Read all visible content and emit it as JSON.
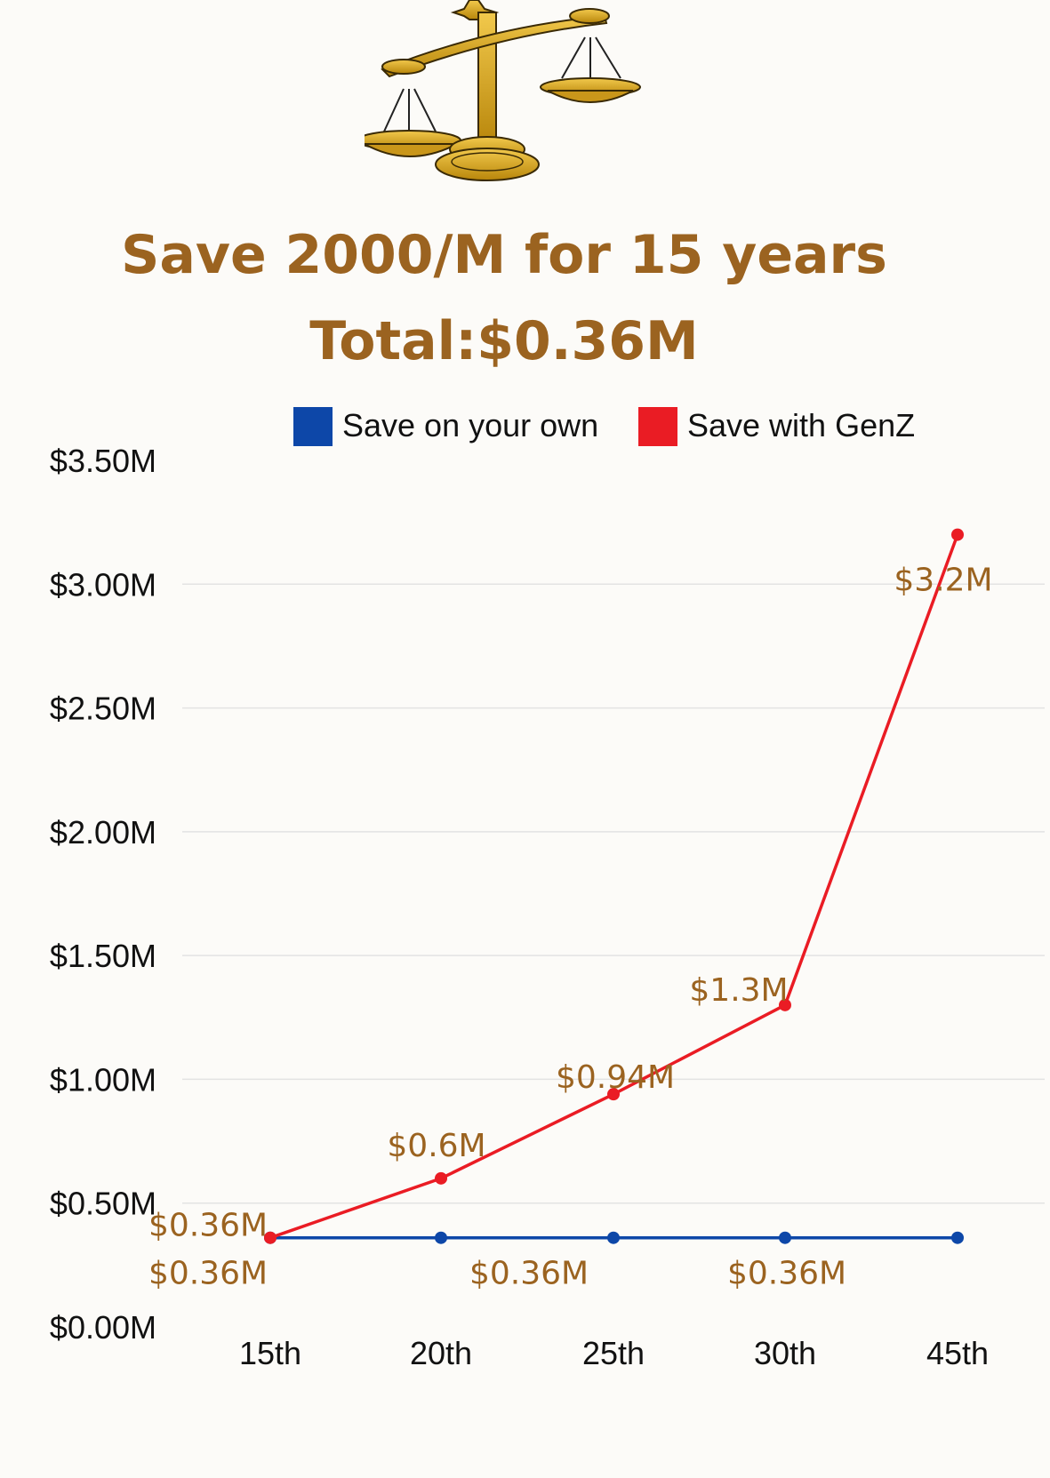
{
  "colors": {
    "accent": "#9b6320",
    "series_own": "#0d47a8",
    "series_genz": "#ea1c24",
    "gold": "#d4a017",
    "grid": "#e3e3e3",
    "background": "#fcfbf8"
  },
  "logo": {
    "icon": "balance-scale-icon"
  },
  "chart_data": {
    "type": "line",
    "title": [
      "Save 2000/M for 15 years",
      "Total:$0.36M"
    ],
    "xlabel": "",
    "ylabel": "",
    "categories": [
      "15th",
      "20th",
      "25th",
      "30th",
      "45th"
    ],
    "ylim": [
      0,
      3.5
    ],
    "yticks": [
      {
        "value": 0,
        "label": "$0.00M"
      },
      {
        "value": 0.5,
        "label": "$0.50M"
      },
      {
        "value": 1,
        "label": "$1.00M"
      },
      {
        "value": 1.5,
        "label": "$1.50M"
      },
      {
        "value": 2,
        "label": "$2.00M"
      },
      {
        "value": 2.5,
        "label": "$2.50M"
      },
      {
        "value": 3,
        "label": "$3.00M"
      },
      {
        "value": 3.5,
        "label": "$3.50M"
      }
    ],
    "grid": true,
    "legend_position": "top",
    "series": [
      {
        "name": "Save on your own",
        "color": "#0d47a8",
        "values": [
          0.36,
          0.36,
          0.36,
          0.36,
          0.36
        ],
        "labels": [
          "$0.36M",
          "",
          "$0.36M",
          "$0.36M",
          ""
        ]
      },
      {
        "name": "Save with GenZ",
        "color": "#ea1c24",
        "values": [
          0.36,
          0.6,
          0.94,
          1.3,
          3.2
        ],
        "labels": [
          "$0.36M",
          "$0.6M",
          "$0.94M",
          "$1.3M",
          "$3.2M"
        ]
      }
    ]
  }
}
